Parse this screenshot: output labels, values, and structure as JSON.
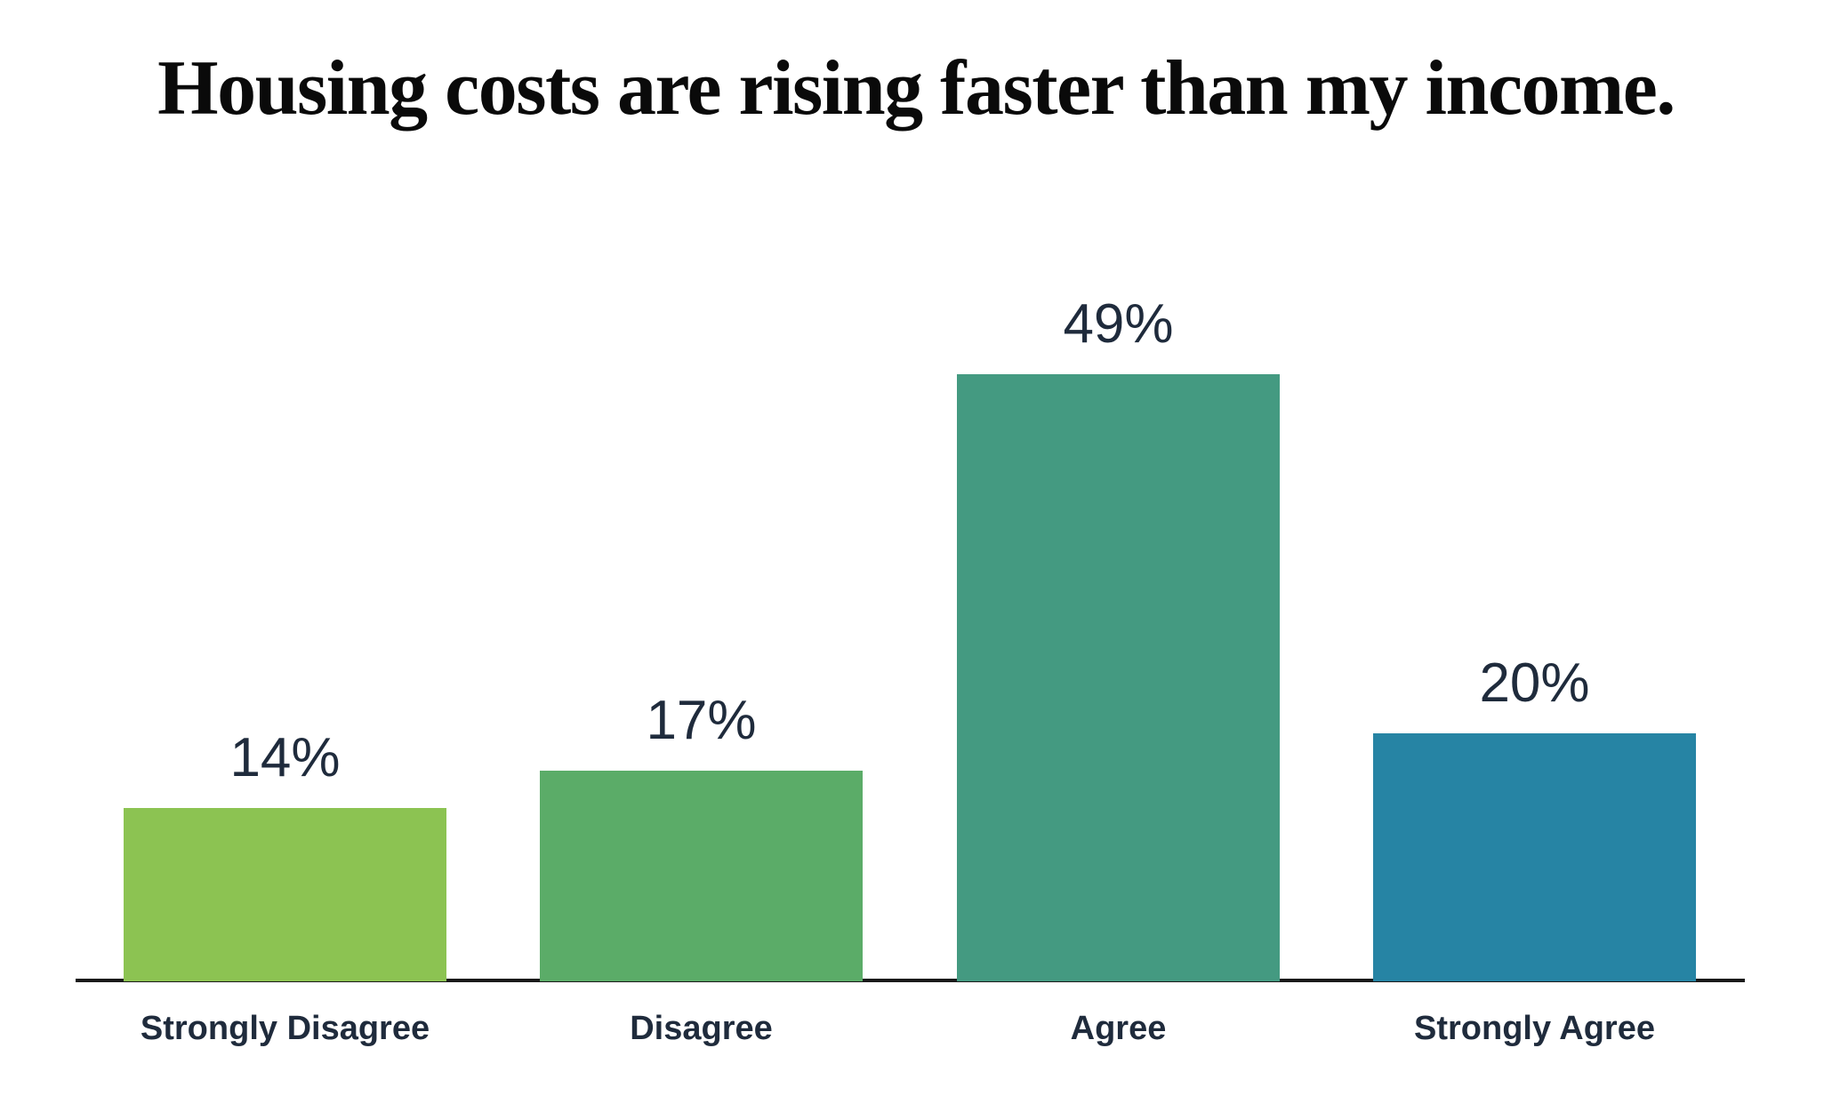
{
  "page": {
    "background": "#FFFFFF"
  },
  "title": "Housing costs are rising faster than my income.",
  "chart_data": {
    "type": "bar",
    "title": "Housing costs are rising faster than my income.",
    "categories": [
      "Strongly Disagree",
      "Disagree",
      "Agree",
      "Strongly Agree"
    ],
    "values": [
      14,
      17,
      49,
      20
    ],
    "value_labels": [
      "14%",
      "17%",
      "49%",
      "20%"
    ],
    "bar_colors": [
      "#8CC352",
      "#5BAC68",
      "#449A81",
      "#2684A4"
    ],
    "xlabel": "",
    "ylabel": "",
    "ylim": [
      0,
      50
    ],
    "grid": false,
    "legend": false,
    "axis_line_color": "#1A1A1A",
    "label_color": "#1F2B3C",
    "title_color": "#0A0A0A"
  }
}
